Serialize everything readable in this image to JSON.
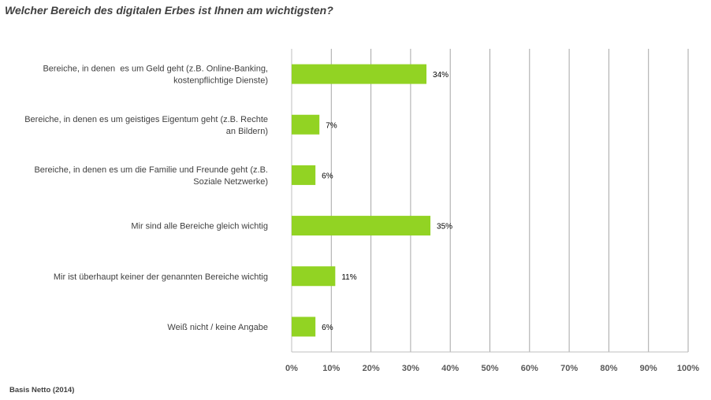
{
  "title": "Welcher Bereich des digitalen Erbes ist Ihnen am wichtigsten?",
  "source": "Basis Netto (2014)",
  "chart_data": {
    "type": "bar",
    "orientation": "horizontal",
    "categories": [
      [
        "Bereiche, in denen  es um Geld geht (z.B. Online-Banking,",
        "kostenpflichtige Dienste)"
      ],
      [
        "Bereiche, in denen es um geistiges Eigentum geht (z.B. Rechte",
        "an Bildern)"
      ],
      [
        "Bereiche, in denen es um die Familie und Freunde geht (z.B.",
        "Soziale Netzwerke)"
      ],
      [
        "Mir sind alle Bereiche gleich wichtig"
      ],
      [
        "Mir ist überhaupt keiner der genannten Bereiche wichtig"
      ],
      [
        "Weiß nicht / keine Angabe"
      ]
    ],
    "values": [
      34,
      7,
      6,
      35,
      11,
      6
    ],
    "data_labels": [
      "34%",
      "7%",
      "6%",
      "35%",
      "11%",
      "6%"
    ],
    "xlim": [
      0,
      100
    ],
    "xticks": [
      "0%",
      "10%",
      "20%",
      "30%",
      "40%",
      "50%",
      "60%",
      "70%",
      "80%",
      "90%",
      "100%"
    ],
    "bar_color": "#92d323",
    "grid": true
  }
}
